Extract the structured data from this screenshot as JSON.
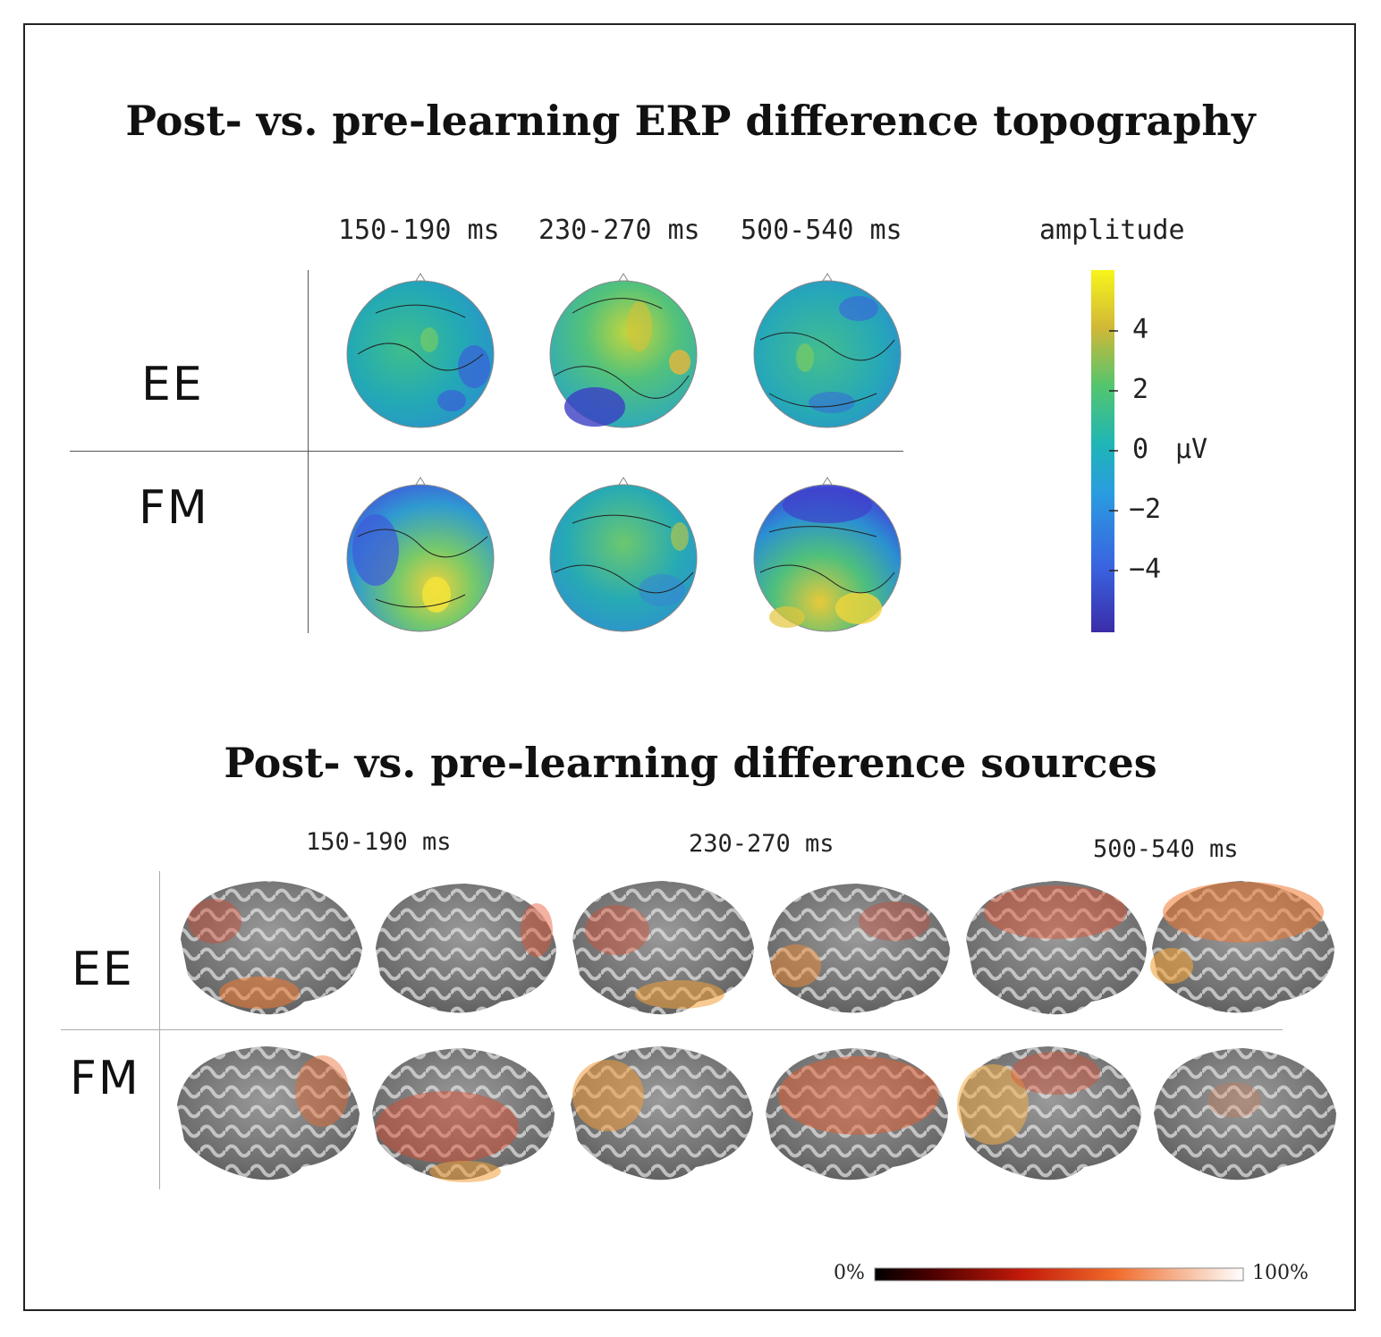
{
  "topography": {
    "title": "Post- vs. pre-learning ERP difference topography",
    "time_windows": [
      "150-190 ms",
      "230-270 ms",
      "500-540 ms"
    ],
    "rows": [
      "EE",
      "FM"
    ],
    "colorbar": {
      "title": "amplitude",
      "unit": "μV",
      "ticks": [
        "4",
        "2",
        "0",
        "−2",
        "−4"
      ]
    }
  },
  "sources": {
    "title": "Post- vs. pre-learning difference sources",
    "time_windows": [
      "150-190 ms",
      "230-270 ms",
      "500-540 ms"
    ],
    "rows": [
      "EE",
      "FM"
    ],
    "colorbar": {
      "min_label": "0%",
      "max_label": "100%"
    }
  }
}
